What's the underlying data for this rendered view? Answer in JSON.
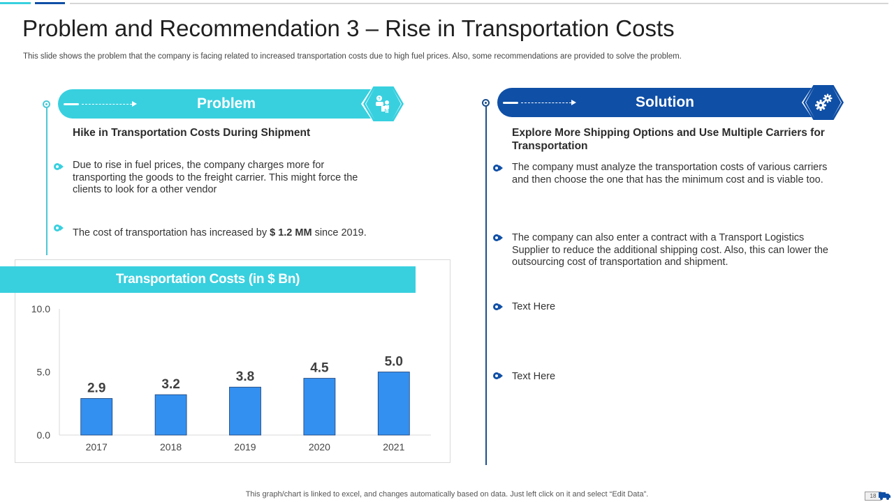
{
  "header": {
    "title": "Problem and Recommendation 3 – Rise in Transportation Costs",
    "subtitle": "This slide shows the problem that the company is facing related to increased transportation costs due to high fuel prices. Also, some recommendations are provided to solve the problem."
  },
  "problem": {
    "banner_label": "Problem",
    "heading": "Hike in Transportation Costs During Shipment",
    "bullets": {
      "b1": "Due to rise in fuel prices, the company charges more for transporting the goods to the freight carrier. This might force the clients to look for a other vendor",
      "b2_prefix": "The cost of transportation has increased by ",
      "b2_bold": "$ 1.2 MM",
      "b2_suffix": " since 2019."
    },
    "icon": "support-person-icon"
  },
  "solution": {
    "banner_label": "Solution",
    "heading": "Explore More Shipping Options and Use Multiple Carriers for Transportation",
    "bullets": [
      "The company must analyze the transportation costs of various carriers and then choose the one that has the minimum cost and is viable too.",
      "The company can also enter a contract with a Transport Logistics Supplier to reduce the additional shipping cost. Also, this can lower the outsourcing cost of transportation and shipment.",
      "Text Here",
      "Text Here"
    ],
    "icon": "gears-icon"
  },
  "chart_data": {
    "type": "bar",
    "title": "Transportation Costs (in $ Bn)",
    "categories": [
      "2017",
      "2018",
      "2019",
      "2020",
      "2021"
    ],
    "values": [
      2.9,
      3.2,
      3.8,
      4.5,
      5.0
    ],
    "value_labels": [
      "2.9",
      "3.2",
      "3.8",
      "4.5",
      "5.0"
    ],
    "y_ticks": [
      "0.0",
      "5.0",
      "10.0"
    ],
    "ylim": [
      0,
      10
    ],
    "xlabel": "",
    "ylabel": "",
    "grid": false,
    "bar_color": "#3390f0"
  },
  "footer": {
    "note": "This graph/chart is linked to excel,  and changes automatically based on data. Just left click on it and select “Edit Data”.",
    "page_number": "18"
  },
  "colors": {
    "cyan": "#38d0df",
    "navy": "#0f4fa6",
    "bar": "#3390f0",
    "line_teal": "#4cc9d6",
    "line_navy": "#1b4f8c"
  }
}
